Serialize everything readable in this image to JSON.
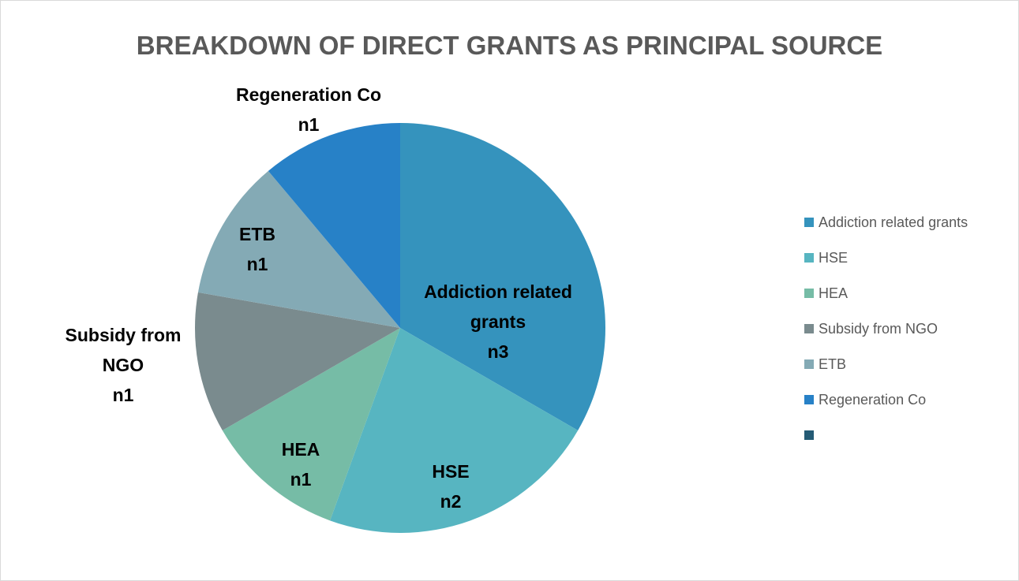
{
  "chart_data": {
    "type": "pie",
    "title": "BREAKDOWN OF DIRECT GRANTS AS PRINCIPAL SOURCE",
    "categories": [
      "Addiction related grants",
      "HSE",
      "HEA",
      "Subsidy from NGO",
      "ETB",
      "Regeneration Co",
      null
    ],
    "values": [
      3,
      2,
      1,
      1,
      1,
      1,
      null
    ],
    "value_labels": [
      "n3",
      "n2",
      "n1",
      "n1",
      "n1",
      "n1",
      null
    ],
    "colors": [
      "#3593bd",
      "#57b5c1",
      "#76bca6",
      "#7a8b8e",
      "#84aab5",
      "#2781c7",
      "#245b75"
    ],
    "legend": "right"
  }
}
